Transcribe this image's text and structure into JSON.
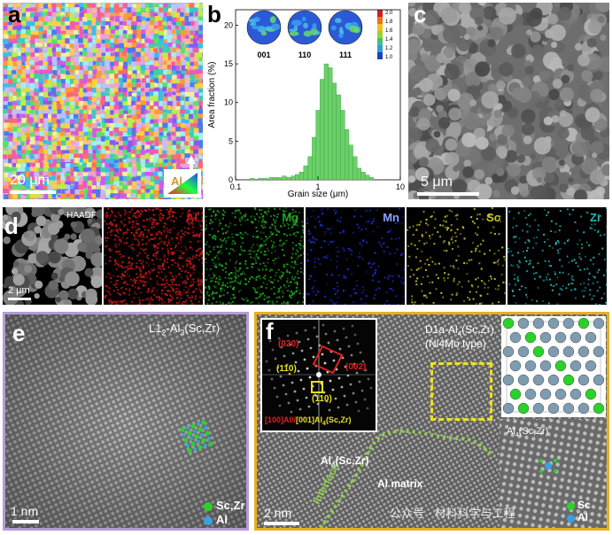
{
  "panels": {
    "a": {
      "label": "a",
      "scale_bar": "20 μm",
      "ipf_label": "Al"
    },
    "b": {
      "label": "b",
      "pole_labels": [
        "001",
        "110",
        "111"
      ],
      "colorbar_ticks": [
        "2.0",
        "1.8",
        "1.6",
        "1.4",
        "1.2",
        "1.0"
      ],
      "xlabel": "Grain size (μm)",
      "ylabel": "Area fraction (%)",
      "yticks": [
        "0",
        "5",
        "10",
        "15",
        "20"
      ],
      "xticks": [
        "0.1",
        "1",
        "10"
      ]
    },
    "c": {
      "label": "c",
      "scale_bar": "5 μm"
    },
    "d": {
      "label": "d",
      "scale_bar": "2 μm",
      "maps": [
        {
          "name": "HAADF",
          "color": "#888888"
        },
        {
          "name": "Al",
          "color": "#d01818"
        },
        {
          "name": "Mg",
          "color": "#1faa1f"
        },
        {
          "name": "Mn",
          "color": "#1a2fd8"
        },
        {
          "name": "Sc",
          "color": "#c8c82a"
        },
        {
          "name": "Zr",
          "color": "#28b4b4"
        }
      ]
    },
    "e": {
      "label": "e",
      "title_prefix": "L1",
      "title_sub": "2",
      "title_suffix": "-Al",
      "title_sub2": "3",
      "title_end": "(Sc,Zr)",
      "scale_bar": "1 nm",
      "legend": [
        "Sc,Zr",
        "Al"
      ],
      "border_color": "#b49bd6"
    },
    "f": {
      "label": "f",
      "title_line1_prefix": "D1a-Al",
      "title_line1_sub": "4",
      "title_line1_end": "(Sc,Zr)",
      "title_line2": "(Ni4Mo type)",
      "fft_spots": [
        "(020)",
        "(110)",
        "(002)",
        "(110)"
      ],
      "fft_caption_red": "[100]Al//",
      "fft_caption_yellow_prefix": "[001]Al",
      "fft_caption_yellow_sub": "4",
      "fft_caption_yellow_end": "(Sc,Zr)",
      "phase_label_prefix": "Al",
      "phase_label_sub": "4",
      "phase_label_end": "(Sc,Zr)",
      "matrix_label": "Al matrix",
      "interface_label": "Interface",
      "scale_bar": "2 nm",
      "inset_label_prefix": "Al",
      "inset_label_sub": "4",
      "inset_label_end": "(Sc,Zr)",
      "legend": [
        "Sc",
        "Al"
      ],
      "watermark": "公众号 · 材料科学与工程",
      "border_color": "#e8b020"
    }
  },
  "chart_data": {
    "type": "bar",
    "title": "",
    "xlabel": "Grain size (μm)",
    "ylabel": "Area fraction (%)",
    "xscale": "log",
    "xlim": [
      0.1,
      10
    ],
    "ylim": [
      0,
      22
    ],
    "x": [
      0.16,
      0.2,
      0.23,
      0.27,
      0.3,
      0.34,
      0.39,
      0.44,
      0.5,
      0.56,
      0.63,
      0.71,
      0.8,
      0.9,
      1.0,
      1.12,
      1.26,
      1.41,
      1.58,
      1.78,
      2.0,
      2.24,
      2.51,
      2.82,
      3.16,
      3.55,
      3.98,
      4.47
    ],
    "values": [
      0.2,
      0.2,
      0.2,
      0.3,
      0.3,
      0.3,
      0.5,
      0.3,
      0.5,
      0.7,
      1.0,
      1.8,
      3.0,
      5.5,
      9.0,
      13.0,
      15.0,
      14.5,
      12.5,
      11.0,
      9.0,
      6.5,
      4.5,
      3.0,
      1.5,
      1.0,
      0.6,
      0.3
    ],
    "bar_color": "#6ad16a"
  }
}
